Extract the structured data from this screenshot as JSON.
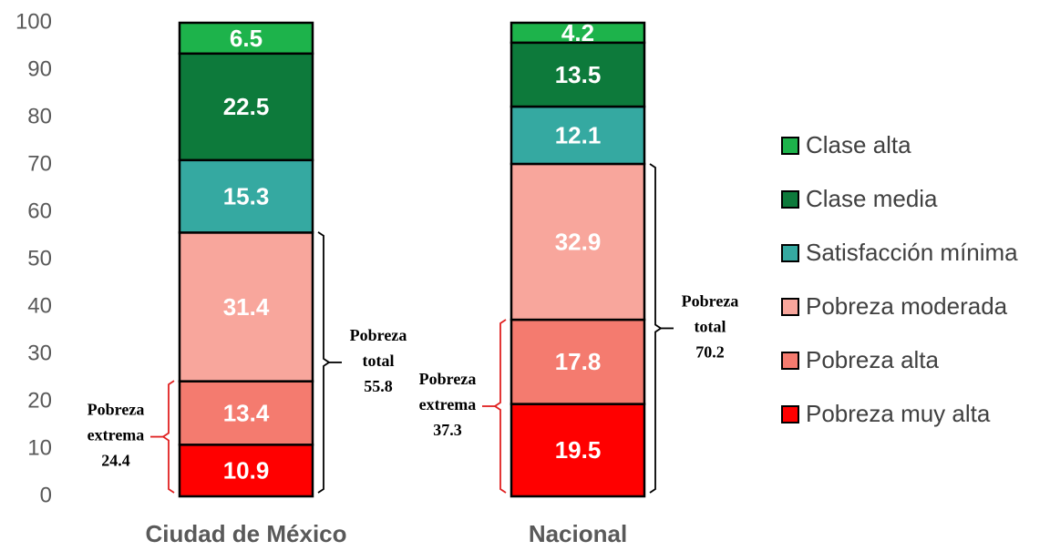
{
  "chart_data": {
    "type": "stacked_bar",
    "categories": [
      "Ciudad de México",
      "Nacional"
    ],
    "series": [
      {
        "name": "Pobreza muy alta",
        "color": "#ff0000",
        "values": [
          10.9,
          19.5
        ]
      },
      {
        "name": "Pobreza alta",
        "color": "#f47b6f",
        "values": [
          13.4,
          17.8
        ]
      },
      {
        "name": "Pobreza moderada",
        "color": "#f8a69c",
        "values": [
          31.4,
          32.9
        ]
      },
      {
        "name": "Satisfacción mínima",
        "color": "#35a9a1",
        "values": [
          15.3,
          12.1
        ]
      },
      {
        "name": "Clase media",
        "color": "#0d7a3b",
        "values": [
          22.5,
          13.5
        ]
      },
      {
        "name": "Clase alta",
        "color": "#1db34b",
        "values": [
          6.5,
          4.2
        ]
      }
    ],
    "ylim": [
      0,
      100
    ],
    "yticks": [
      0,
      10,
      20,
      30,
      40,
      50,
      60,
      70,
      80,
      90,
      100
    ],
    "grid": false,
    "legend": "right",
    "annotations": [
      {
        "lines": [
          "Pobreza",
          "extrema"
        ],
        "value": 24.4,
        "category": 0,
        "side": "left",
        "color": "#e02020"
      },
      {
        "lines": [
          "Pobreza",
          "total"
        ],
        "value": 55.8,
        "category": 0,
        "side": "right",
        "color": "#000000"
      },
      {
        "lines": [
          "Pobreza",
          "extrema"
        ],
        "value": 37.3,
        "category": 1,
        "side": "left",
        "color": "#e02020"
      },
      {
        "lines": [
          "Pobreza",
          "total"
        ],
        "value": 70.2,
        "category": 1,
        "side": "right",
        "color": "#000000"
      }
    ]
  }
}
